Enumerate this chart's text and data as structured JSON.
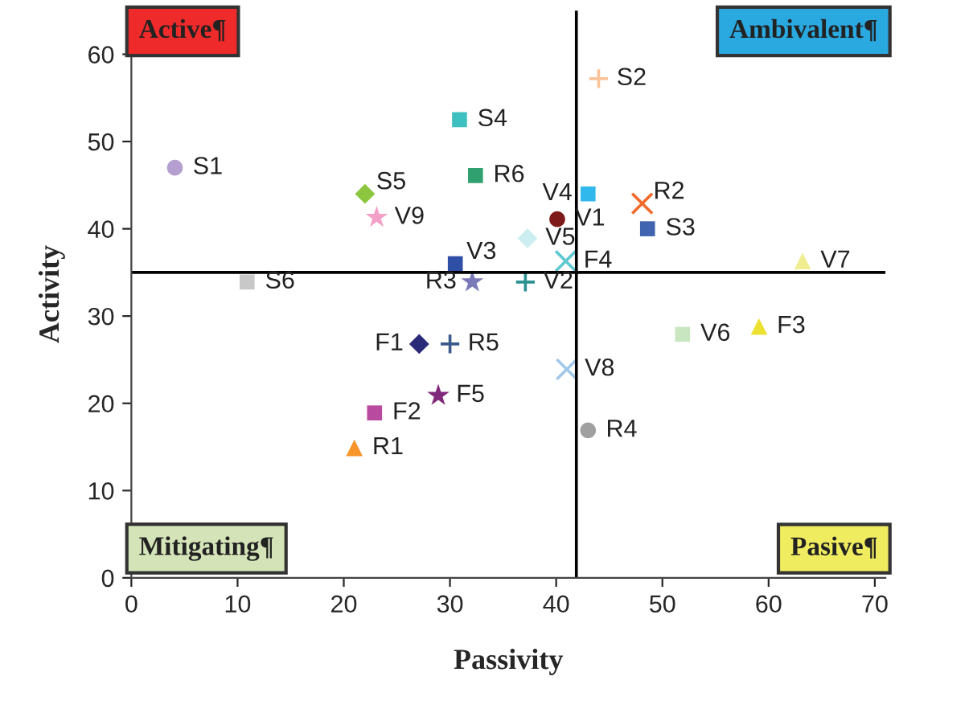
{
  "chart_data": {
    "type": "scatter",
    "xlabel": "Passivity",
    "ylabel": "Activity",
    "xlim": [
      0,
      71
    ],
    "ylim": [
      0,
      65
    ],
    "xticks": [
      0,
      10,
      20,
      30,
      40,
      50,
      60,
      70
    ],
    "yticks": [
      0,
      10,
      20,
      30,
      40,
      50,
      60
    ],
    "grid": false,
    "annotations": [
      "Active¶",
      "Ambivalent¶",
      "Mitigating¶",
      "Pasive¶"
    ],
    "ref_lines": [
      {
        "axis": "x",
        "value": 41.9,
        "color": "#000000"
      },
      {
        "axis": "y",
        "value": 35.0,
        "color": "#000000"
      }
    ],
    "series": [
      {
        "name": "S1",
        "color": "#b49fd0",
        "marker": "circle",
        "x": [
          4.1
        ],
        "values": [
          47.0
        ]
      },
      {
        "name": "S2",
        "color": "#fbc39a",
        "marker": "plus",
        "x": [
          44.0
        ],
        "values": [
          57.2
        ]
      },
      {
        "name": "S3",
        "color": "#4064b0",
        "marker": "square",
        "x": [
          48.6
        ],
        "values": [
          40.0
        ]
      },
      {
        "name": "S4",
        "color": "#3ec0c0",
        "marker": "square",
        "x": [
          30.9
        ],
        "values": [
          52.5
        ]
      },
      {
        "name": "S5",
        "color": "#8cc63f",
        "marker": "diamond",
        "x": [
          22.0
        ],
        "values": [
          44.0
        ]
      },
      {
        "name": "S6",
        "color": "#c8c8c8",
        "marker": "square",
        "x": [
          10.9
        ],
        "values": [
          33.9
        ]
      },
      {
        "name": "V1",
        "color": "#7f1a1a",
        "marker": "circle",
        "x": [
          40.1
        ],
        "values": [
          41.1
        ]
      },
      {
        "name": "V2",
        "color": "#2a9090",
        "marker": "plus",
        "x": [
          37.1
        ],
        "values": [
          33.9
        ]
      },
      {
        "name": "V3",
        "color": "#3050a8",
        "marker": "square",
        "x": [
          30.5
        ],
        "values": [
          36.0
        ]
      },
      {
        "name": "V4",
        "color": "#30b8ec",
        "marker": "square",
        "x": [
          43.0
        ],
        "values": [
          44.0
        ]
      },
      {
        "name": "V5",
        "color": "#cdeef0",
        "marker": "diamond",
        "x": [
          37.3
        ],
        "values": [
          38.9
        ]
      },
      {
        "name": "V6",
        "color": "#c8e6c0",
        "marker": "square",
        "x": [
          51.9
        ],
        "values": [
          27.9
        ]
      },
      {
        "name": "V7",
        "color": "#f0ec90",
        "marker": "triangle",
        "x": [
          63.2
        ],
        "values": [
          36.3
        ]
      },
      {
        "name": "V8",
        "color": "#a0c8ea",
        "marker": "x",
        "x": [
          41.0
        ],
        "values": [
          23.9
        ]
      },
      {
        "name": "V9",
        "color": "#f4a0c8",
        "marker": "star",
        "x": [
          23.1
        ],
        "values": [
          41.3
        ]
      },
      {
        "name": "R1",
        "color": "#f7942a",
        "marker": "triangle",
        "x": [
          21.0
        ],
        "values": [
          14.9
        ]
      },
      {
        "name": "R2",
        "color": "#f06a2a",
        "marker": "x",
        "x": [
          48.1
        ],
        "values": [
          42.9
        ]
      },
      {
        "name": "R3",
        "color": "#7a7ab8",
        "marker": "star",
        "x": [
          32.1
        ],
        "values": [
          33.9
        ]
      },
      {
        "name": "R4",
        "color": "#a0a0a0",
        "marker": "circle",
        "x": [
          43.0
        ],
        "values": [
          16.9
        ]
      },
      {
        "name": "R5",
        "color": "#3a5a8a",
        "marker": "plus",
        "x": [
          30.0
        ],
        "values": [
          26.8
        ]
      },
      {
        "name": "R6",
        "color": "#30a070",
        "marker": "square",
        "x": [
          32.4
        ],
        "values": [
          46.1
        ]
      },
      {
        "name": "F1",
        "color": "#2a2a78",
        "marker": "diamond",
        "x": [
          27.1
        ],
        "values": [
          26.8
        ]
      },
      {
        "name": "F2",
        "color": "#b84aa0",
        "marker": "square",
        "x": [
          22.9
        ],
        "values": [
          18.9
        ]
      },
      {
        "name": "F3",
        "color": "#ece030",
        "marker": "triangle",
        "x": [
          59.1
        ],
        "values": [
          28.8
        ]
      },
      {
        "name": "F4",
        "color": "#60c8d0",
        "marker": "x",
        "x": [
          40.9
        ],
        "values": [
          36.3
        ]
      },
      {
        "name": "F5",
        "color": "#80287a",
        "marker": "star",
        "x": [
          28.9
        ],
        "values": [
          20.9
        ]
      }
    ]
  }
}
